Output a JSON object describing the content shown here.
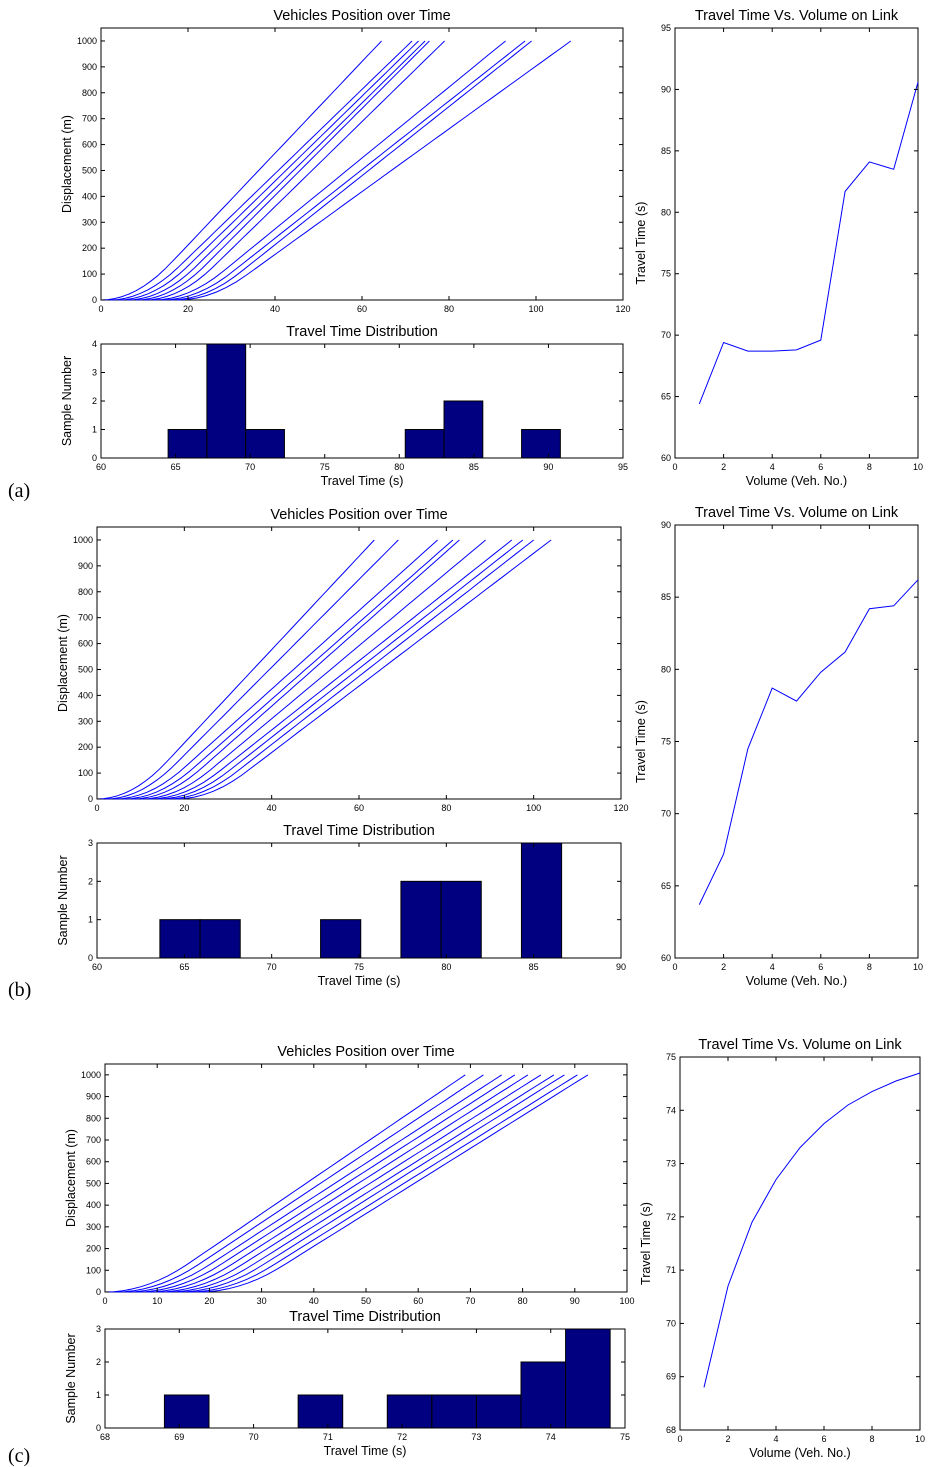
{
  "panel_labels": [
    "(a)",
    "(b)",
    "(c)"
  ],
  "chart_data": [
    {
      "id": "a-pos",
      "type": "line",
      "title": "Vehicles Position over Time",
      "xlabel": "",
      "ylabel": "Displacement (m)",
      "xlim": [
        0,
        120
      ],
      "ylim": [
        0,
        1050
      ],
      "xticks": [
        0,
        20,
        40,
        60,
        80,
        100,
        120
      ],
      "yticks": [
        0,
        100,
        200,
        300,
        400,
        500,
        600,
        700,
        800,
        900,
        1000
      ],
      "line_color": "#0000ff",
      "series": [
        {
          "start": 0,
          "end": 64.5
        },
        {
          "start": 2,
          "end": 71.5
        },
        {
          "start": 4,
          "end": 73
        },
        {
          "start": 6,
          "end": 74.5
        },
        {
          "start": 8,
          "end": 75.5
        },
        {
          "start": 10,
          "end": 79
        },
        {
          "start": 12,
          "end": 93
        },
        {
          "start": 14,
          "end": 97.5
        },
        {
          "start": 16,
          "end": 99
        },
        {
          "start": 17.5,
          "end": 108
        }
      ]
    },
    {
      "id": "a-hist",
      "type": "bar",
      "title": "Travel Time Distribution",
      "xlabel": "Travel Time (s)",
      "ylabel": "Sample Number",
      "xlim": [
        60,
        95
      ],
      "ylim": [
        0,
        4
      ],
      "xticks": [
        60,
        65,
        70,
        75,
        80,
        85,
        90,
        95
      ],
      "yticks": [
        0,
        1,
        2,
        3,
        4
      ],
      "bar_color": "#000080",
      "bins": [
        {
          "x0": 64.5,
          "x1": 67.1,
          "count": 1
        },
        {
          "x0": 67.1,
          "x1": 69.7,
          "count": 4
        },
        {
          "x0": 69.7,
          "x1": 72.3,
          "count": 1
        },
        {
          "x0": 80.4,
          "x1": 83.0,
          "count": 1
        },
        {
          "x0": 83.0,
          "x1": 85.6,
          "count": 2
        },
        {
          "x0": 88.2,
          "x1": 90.8,
          "count": 1
        }
      ]
    },
    {
      "id": "a-tt",
      "type": "line",
      "title": "Travel Time Vs. Volume on Link",
      "xlabel": "Volume (Veh. No.)",
      "ylabel": "Travel Time (s)",
      "xlim": [
        0,
        10
      ],
      "ylim": [
        60,
        95
      ],
      "xticks": [
        0,
        2,
        4,
        6,
        8,
        10
      ],
      "yticks": [
        60,
        65,
        70,
        75,
        80,
        85,
        90,
        95
      ],
      "line_color": "#0000ff",
      "x": [
        1,
        2,
        3,
        4,
        5,
        6,
        7,
        8,
        9,
        10
      ],
      "y": [
        64.4,
        69.4,
        68.7,
        68.7,
        68.8,
        69.6,
        81.7,
        84.1,
        83.5,
        90.6
      ]
    },
    {
      "id": "b-pos",
      "type": "line",
      "title": "Vehicles Position over Time",
      "xlabel": "",
      "ylabel": "Displacement (m)",
      "xlim": [
        0,
        120
      ],
      "ylim": [
        0,
        1050
      ],
      "xticks": [
        0,
        20,
        40,
        60,
        80,
        100,
        120
      ],
      "yticks": [
        0,
        100,
        200,
        300,
        400,
        500,
        600,
        700,
        800,
        900,
        1000
      ],
      "line_color": "#0000ff",
      "series": [
        {
          "start": 0,
          "end": 63.5
        },
        {
          "start": 2,
          "end": 69
        },
        {
          "start": 4,
          "end": 78
        },
        {
          "start": 6,
          "end": 81.5
        },
        {
          "start": 8,
          "end": 83
        },
        {
          "start": 10,
          "end": 89
        },
        {
          "start": 12,
          "end": 95
        },
        {
          "start": 14,
          "end": 97.5
        },
        {
          "start": 16,
          "end": 100
        },
        {
          "start": 18,
          "end": 104
        }
      ]
    },
    {
      "id": "b-hist",
      "type": "bar",
      "title": "Travel Time Distribution",
      "xlabel": "Travel Time (s)",
      "ylabel": "Sample Number",
      "xlim": [
        60,
        90
      ],
      "ylim": [
        0,
        3
      ],
      "xticks": [
        60,
        65,
        70,
        75,
        80,
        85,
        90
      ],
      "yticks": [
        0,
        1,
        2,
        3
      ],
      "bar_color": "#000080",
      "bins": [
        {
          "x0": 63.6,
          "x1": 65.9,
          "count": 1
        },
        {
          "x0": 65.9,
          "x1": 68.2,
          "count": 1
        },
        {
          "x0": 72.8,
          "x1": 75.1,
          "count": 1
        },
        {
          "x0": 77.4,
          "x1": 79.7,
          "count": 2
        },
        {
          "x0": 79.7,
          "x1": 82.0,
          "count": 2
        },
        {
          "x0": 84.3,
          "x1": 86.6,
          "count": 3
        }
      ]
    },
    {
      "id": "b-tt",
      "type": "line",
      "title": "Travel Time Vs. Volume on Link",
      "xlabel": "Volume (Veh. No.)",
      "ylabel": "Travel Time (s)",
      "xlim": [
        0,
        10
      ],
      "ylim": [
        60,
        90
      ],
      "xticks": [
        0,
        2,
        4,
        6,
        8,
        10
      ],
      "yticks": [
        60,
        65,
        70,
        75,
        80,
        85,
        90
      ],
      "line_color": "#0000ff",
      "x": [
        1,
        2,
        3,
        4,
        5,
        6,
        7,
        8,
        9,
        10
      ],
      "y": [
        63.7,
        67.2,
        74.5,
        78.7,
        77.8,
        79.8,
        81.2,
        84.2,
        84.4,
        86.2
      ]
    },
    {
      "id": "c-pos",
      "type": "line",
      "title": "Vehicles Position over Time",
      "xlabel": "",
      "ylabel": "Displacement (m)",
      "xlim": [
        0,
        100
      ],
      "ylim": [
        0,
        1050
      ],
      "xticks": [
        0,
        10,
        20,
        30,
        40,
        50,
        60,
        70,
        80,
        90,
        100
      ],
      "yticks": [
        0,
        100,
        200,
        300,
        400,
        500,
        600,
        700,
        800,
        900,
        1000
      ],
      "line_color": "#0000ff",
      "series": [
        {
          "start": 0,
          "end": 69
        },
        {
          "start": 2,
          "end": 72.5
        },
        {
          "start": 4,
          "end": 76
        },
        {
          "start": 6,
          "end": 78.5
        },
        {
          "start": 8,
          "end": 81
        },
        {
          "start": 10,
          "end": 83.5
        },
        {
          "start": 12,
          "end": 86
        },
        {
          "start": 14,
          "end": 88
        },
        {
          "start": 16,
          "end": 90.5
        },
        {
          "start": 18,
          "end": 92.5
        }
      ]
    },
    {
      "id": "c-hist",
      "type": "bar",
      "title": "Travel Time Distribution",
      "xlabel": "Travel Time (s)",
      "ylabel": "Sample Number",
      "xlim": [
        68,
        75
      ],
      "ylim": [
        0,
        3
      ],
      "xticks": [
        68,
        69,
        70,
        71,
        72,
        73,
        74,
        75
      ],
      "yticks": [
        0,
        1,
        2,
        3
      ],
      "bar_color": "#000080",
      "bins": [
        {
          "x0": 68.8,
          "x1": 69.4,
          "count": 1
        },
        {
          "x0": 70.6,
          "x1": 71.2,
          "count": 1
        },
        {
          "x0": 71.8,
          "x1": 72.4,
          "count": 1
        },
        {
          "x0": 72.4,
          "x1": 73.0,
          "count": 1
        },
        {
          "x0": 73.0,
          "x1": 73.6,
          "count": 1
        },
        {
          "x0": 73.6,
          "x1": 74.2,
          "count": 2
        },
        {
          "x0": 74.2,
          "x1": 74.8,
          "count": 3
        }
      ]
    },
    {
      "id": "c-tt",
      "type": "line",
      "title": "Travel Time Vs. Volume on Link",
      "xlabel": "Volume (Veh. No.)",
      "ylabel": "Travel Time (s)",
      "xlim": [
        0,
        10
      ],
      "ylim": [
        68,
        75
      ],
      "xticks": [
        0,
        2,
        4,
        6,
        8,
        10
      ],
      "yticks": [
        68,
        69,
        70,
        71,
        72,
        73,
        74,
        75
      ],
      "line_color": "#0000ff",
      "x": [
        1,
        2,
        3,
        4,
        5,
        6,
        7,
        8,
        9,
        10
      ],
      "y": [
        68.8,
        70.7,
        71.9,
        72.7,
        73.3,
        73.75,
        74.1,
        74.35,
        74.55,
        74.7
      ]
    }
  ]
}
